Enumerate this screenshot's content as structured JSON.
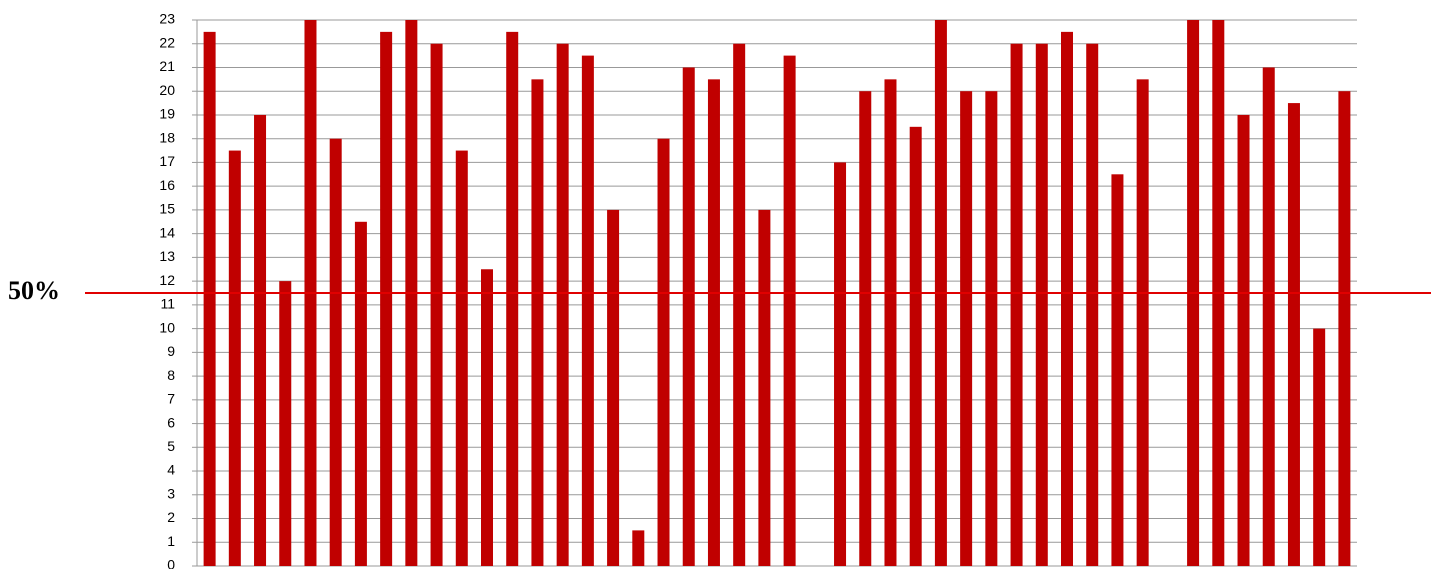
{
  "chart_data": {
    "type": "bar",
    "categories": [
      null,
      null,
      null,
      null,
      null,
      null,
      null,
      null,
      null,
      null,
      null,
      null,
      null,
      null,
      null,
      null,
      null,
      null,
      null,
      null,
      null,
      null,
      null,
      null,
      null,
      null,
      null,
      null,
      null,
      null,
      null,
      null,
      null,
      null,
      null,
      null,
      null,
      null,
      null,
      null,
      null,
      null,
      null,
      null,
      null,
      null
    ],
    "values": [
      22.5,
      17.5,
      19,
      12,
      23,
      18,
      14.5,
      22.5,
      23,
      22,
      17.5,
      12.5,
      22.5,
      20.5,
      22,
      21.5,
      15,
      1.5,
      18,
      21,
      20.5,
      22,
      15,
      21.5,
      0,
      17,
      20,
      20.5,
      18.5,
      23,
      20,
      20,
      22,
      22,
      22.5,
      22,
      16.5,
      20.5,
      0,
      23,
      23,
      19,
      21,
      19.5,
      10,
      20
    ],
    "color": "#c00000",
    "ylim": [
      0,
      23
    ],
    "yticks": [
      0,
      1,
      2,
      3,
      4,
      5,
      6,
      7,
      8,
      9,
      10,
      11,
      12,
      13,
      14,
      15,
      16,
      17,
      18,
      19,
      20,
      21,
      22,
      23
    ],
    "grid": true,
    "annotations": [
      {
        "label": "50%",
        "value": 11.5,
        "color": "#e00000"
      }
    ]
  }
}
